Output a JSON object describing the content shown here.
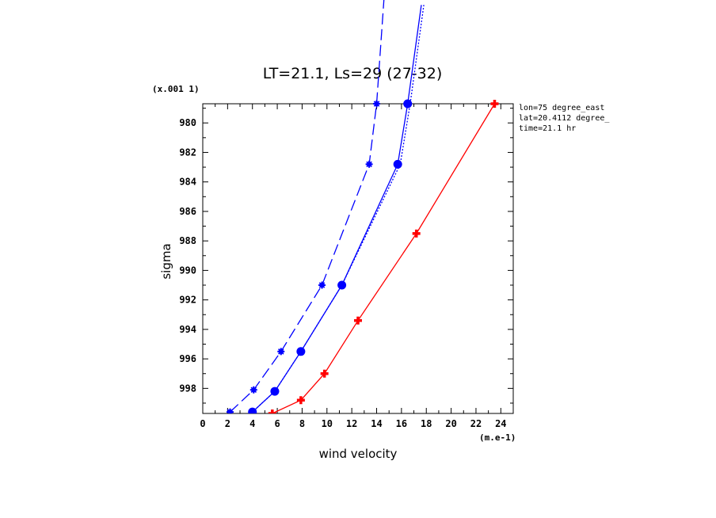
{
  "chart_data": {
    "type": "line",
    "title": "LT=21.1, Ls=29 (27-32)",
    "xlabel": "wind velocity",
    "ylabel": "sigma",
    "x_units": "(m.e-1)",
    "y_scale_note": "(x.001 1)",
    "xlim": [
      0,
      25
    ],
    "ylim": [
      999.7,
      978.7
    ],
    "x_ticks": [
      0,
      2,
      4,
      6,
      8,
      10,
      12,
      14,
      16,
      18,
      20,
      22,
      24
    ],
    "y_ticks": [
      980,
      982,
      984,
      986,
      988,
      990,
      992,
      994,
      996,
      998
    ],
    "info_lines": [
      "lon=75 degree_east",
      "lat=20.4112 degree_",
      "time=21.1 hr"
    ],
    "grid": false,
    "series": [
      {
        "style": "solid",
        "color": "#ff0000",
        "marker": "plus",
        "x": [
          5.6,
          7.9,
          9.8,
          12.5,
          17.2,
          23.5
        ],
        "y": [
          999.7,
          998.8,
          997.0,
          993.4,
          987.5,
          978.7
        ]
      },
      {
        "style": "solid",
        "color": "#0000ff",
        "marker": "dot",
        "x": [
          4.0,
          5.8,
          7.9,
          11.2,
          15.7,
          16.5,
          17.6
        ],
        "y": [
          999.6,
          998.2,
          995.5,
          991.0,
          982.8,
          978.7,
          972.0
        ]
      },
      {
        "style": "dotted",
        "color": "#0000ff",
        "marker": "none",
        "x": [
          4.0,
          5.8,
          7.9,
          11.2,
          15.9,
          16.7,
          17.8
        ],
        "y": [
          999.6,
          998.2,
          995.5,
          991.0,
          982.8,
          978.7,
          972.0
        ]
      },
      {
        "style": "dashed",
        "color": "#0000ff",
        "marker": "asterisk",
        "x": [
          2.2,
          4.1,
          6.3,
          9.6,
          13.4,
          14.0,
          14.6
        ],
        "y": [
          999.6,
          998.1,
          995.5,
          991.0,
          982.8,
          978.7,
          971.5
        ]
      }
    ]
  }
}
